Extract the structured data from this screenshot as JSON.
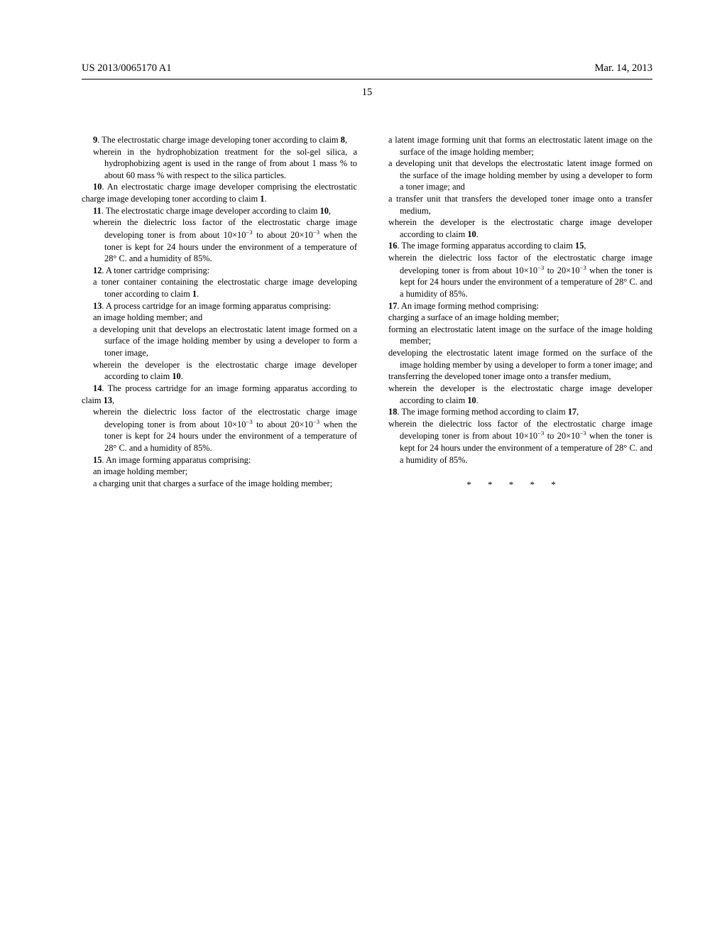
{
  "header": {
    "left": "US 2013/0065170 A1",
    "right": "Mar. 14, 2013"
  },
  "page_number": "15",
  "left_column": {
    "claim9_start": "9. The electrostatic charge image developing toner according to claim 8,",
    "claim9_body": "wherein in the hydrophobization treatment for the sol-gel silica, a hydrophobizing agent is used in the range of from about 1 mass % to about 60 mass % with respect to the silica particles.",
    "claim10": "10. An electrostatic charge image developer comprising the electrostatic charge image developing toner according to claim 1.",
    "claim11_start": "11. The electrostatic charge image developer according to claim 10,",
    "claim11_body": "wherein the dielectric loss factor of the electrostatic charge image developing toner is from about 10×10⁻³ to about 20×10⁻³ when the toner is kept for 24 hours under the environment of a temperature of 28° C. and a humidity of 85%.",
    "claim12_start": "12. A toner cartridge comprising:",
    "claim12_body": "a toner container containing the electrostatic charge image developing toner according to claim 1.",
    "claim13_start": "13. A process cartridge for an image forming apparatus comprising:",
    "claim13_body1": "an image holding member; and",
    "claim13_body2": "a developing unit that develops an electrostatic latent image formed on a surface of the image holding member by using a developer to form a toner image,",
    "claim13_body3": "wherein the developer is the electrostatic charge image developer according to claim 10.",
    "claim14_start": "14. The process cartridge for an image forming apparatus according to claim 13,",
    "claim14_body": "wherein the dielectric loss factor of the electrostatic charge image developing toner is from about 10×10⁻³ to about 20×10⁻³ when the toner is kept for 24 hours under the environment of a temperature of 28° C. and a humidity of 85%.",
    "claim15_start": "15. An image forming apparatus comprising:",
    "claim15_body1": "an image holding member;",
    "claim15_body2": "a charging unit that charges a surface of the image holding member;"
  },
  "right_column": {
    "claim15_body3": "a latent image forming unit that forms an electrostatic latent image on the surface of the image holding member;",
    "claim15_body4": "a developing unit that develops the electrostatic latent image formed on the surface of the image holding member by using a developer to form a toner image; and",
    "claim15_body5": "a transfer unit that transfers the developed toner image onto a transfer medium,",
    "claim15_body6": "wherein the developer is the electrostatic charge image developer according to claim 10.",
    "claim16_start": "16. The image forming apparatus according to claim 15,",
    "claim16_body": "wherein the dielectric loss factor of the electrostatic charge image developing toner is from about 10×10⁻³ to 20×10⁻³ when the toner is kept for 24 hours under the environment of a temperature of 28° C. and a humidity of 85%.",
    "claim17_start": "17. An image forming method comprising:",
    "claim17_body1": "charging a surface of an image holding member;",
    "claim17_body2": "forming an electrostatic latent image on the surface of the image holding member;",
    "claim17_body3": "developing the electrostatic latent image formed on the surface of the image holding member by using a developer to form a toner image; and",
    "claim17_body4": "transferring the developed toner image onto a transfer medium,",
    "claim17_body5": "wherein the developer is the electrostatic charge image developer according to claim 10.",
    "claim18_start": "18. The image forming method according to claim 17,",
    "claim18_body": "wherein the dielectric loss factor of the electrostatic charge image developing toner is from about 10×10⁻³ to 20×10⁻³ when the toner is kept for 24 hours under the environment of a temperature of 28° C. and a humidity of 85%.",
    "end": "* * * * *"
  }
}
